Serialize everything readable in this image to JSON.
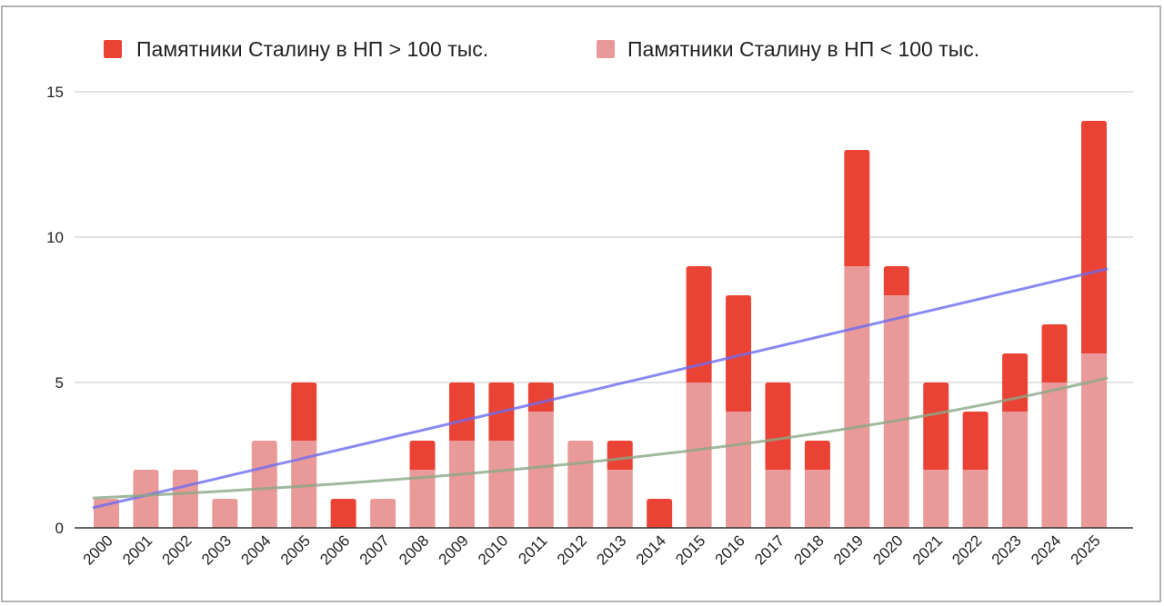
{
  "chart_data": {
    "type": "bar",
    "stacked": true,
    "title": "",
    "xlabel": "",
    "ylabel": "",
    "ylim": [
      0,
      15
    ],
    "yticks": [
      0,
      5,
      10,
      15
    ],
    "grid": true,
    "legend_position": "top",
    "categories": [
      "2000",
      "2001",
      "2002",
      "2003",
      "2004",
      "2005",
      "2006",
      "2007",
      "2008",
      "2009",
      "2010",
      "2011",
      "2012",
      "2013",
      "2014",
      "2015",
      "2016",
      "2017",
      "2018",
      "2019",
      "2020",
      "2021",
      "2022",
      "2023",
      "2024",
      "2025"
    ],
    "series": [
      {
        "name": "Памятники Сталину в НП < 100 тыс.",
        "color": "#e99a98",
        "values": [
          1,
          2,
          2,
          1,
          3,
          3,
          0,
          1,
          2,
          3,
          3,
          4,
          3,
          2,
          0,
          5,
          4,
          2,
          2,
          9,
          8,
          2,
          2,
          4,
          5,
          6
        ]
      },
      {
        "name": "Памятники Сталину в НП > 100 тыс.",
        "color": "#ea4335",
        "values": [
          0,
          0,
          0,
          0,
          0,
          2,
          1,
          0,
          1,
          2,
          2,
          1,
          0,
          1,
          1,
          4,
          4,
          3,
          1,
          4,
          1,
          3,
          2,
          2,
          2,
          8
        ]
      }
    ],
    "legend_order": [
      1,
      0
    ],
    "trendlines": [
      {
        "kind": "linear",
        "color": "#6b6bf2",
        "start": 0.8,
        "end": 8.8
      },
      {
        "kind": "exponential",
        "color": "#8aa886",
        "start": 1.05,
        "end": 5.05
      }
    ]
  }
}
